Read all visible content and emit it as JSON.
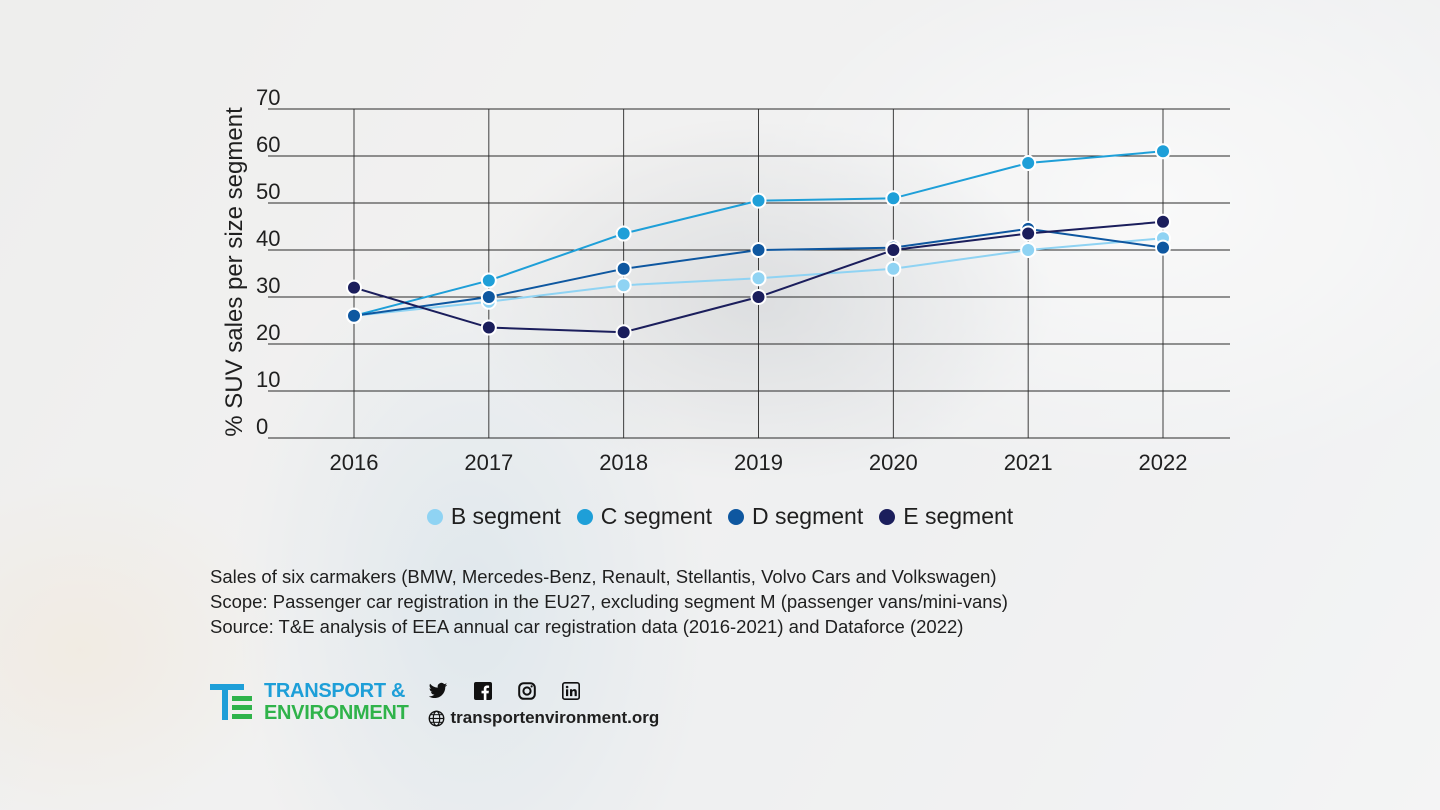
{
  "chart_data": {
    "type": "line",
    "ylabel": "% SUV sales per size segment",
    "ylim": [
      0,
      70
    ],
    "yticks": [
      0,
      10,
      20,
      30,
      40,
      50,
      60,
      70
    ],
    "grid": true,
    "legend_position": "bottom",
    "x": [
      "2016",
      "2017",
      "2018",
      "2019",
      "2020",
      "2021",
      "2022"
    ],
    "series": [
      {
        "name": "B segment",
        "color": "#8fd3f3",
        "values": [
          26,
          29,
          32.5,
          34,
          36,
          40,
          42.5
        ]
      },
      {
        "name": "C segment",
        "color": "#1e9fd8",
        "values": [
          26,
          33.5,
          43.5,
          50.5,
          51,
          58.5,
          61
        ]
      },
      {
        "name": "D segment",
        "color": "#0e57a0",
        "values": [
          26,
          30,
          36,
          40,
          40.5,
          44.5,
          40.5
        ]
      },
      {
        "name": "E segment",
        "color": "#1b1e5c",
        "values": [
          32,
          23.5,
          22.5,
          30,
          40,
          43.5,
          46
        ]
      }
    ]
  },
  "notes": [
    "Sales of six carmakers (BMW, Mercedes-Benz, Renault, Stellantis, Volvo Cars and Volkswagen)",
    "Scope: Passenger car registration in the EU27,  excluding segment M (passenger vans/mini-vans)",
    "Source: T&E analysis of EEA annual car registration data (2016-2021) and Dataforce (2022)"
  ],
  "footer": {
    "logo_line1": "TRANSPORT &",
    "logo_line2": "ENVIRONMENT",
    "logo_color_blue": "#1e9fd8",
    "logo_color_green": "#2fb34a",
    "website": "transportenvironment.org",
    "social_icons": [
      "twitter-icon",
      "facebook-icon",
      "instagram-icon",
      "linkedin-icon",
      "globe-icon"
    ]
  }
}
